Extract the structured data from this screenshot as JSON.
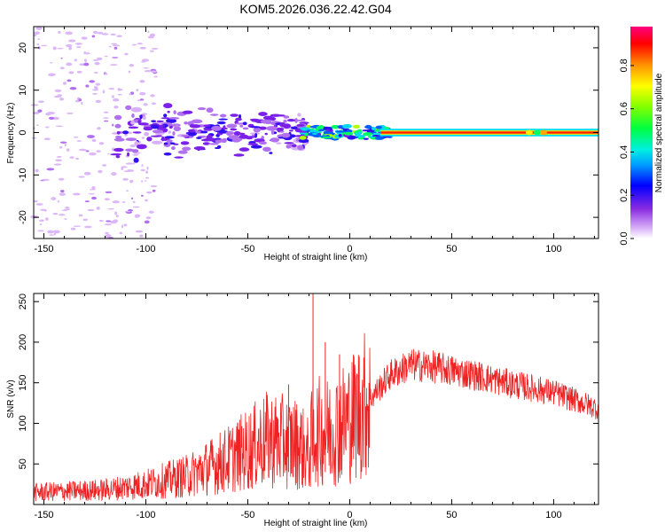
{
  "title": "KOM5.2026.036.22.42.G04",
  "chart_data": [
    {
      "type": "heatmap",
      "xlabel": "Height of straight line (km)",
      "ylabel": "Frequency (Hz)",
      "xlim": [
        -155,
        122
      ],
      "ylim": [
        -25,
        25
      ],
      "xticks": [
        -150,
        -100,
        -50,
        0,
        50,
        100
      ],
      "yticks": [
        -20,
        -10,
        0,
        10,
        20
      ],
      "description_series": [
        {
          "name": "carrier",
          "x_range": [
            -20,
            122
          ],
          "frequency": 0,
          "amplitude": 0.95
        },
        {
          "name": "scatter_strong",
          "x_range": [
            -110,
            -15
          ],
          "frequency_range": [
            -10,
            10
          ],
          "amplitude": 0.15
        },
        {
          "name": "scatter_weak",
          "x_range": [
            -155,
            -95
          ],
          "frequency_range": [
            -25,
            25
          ],
          "amplitude": 0.05
        }
      ],
      "colorbar": {
        "label": "Normalized spectral amplitude",
        "ticks": [
          "0.0",
          "0.2",
          "0.4",
          "0.6",
          "0.8"
        ],
        "tick_values": [
          0.0,
          0.2,
          0.4,
          0.6,
          0.8
        ],
        "range": [
          0,
          0.98
        ]
      }
    },
    {
      "type": "line",
      "xlabel": "Height of straight line (km)",
      "ylabel": "SNR (v/v)",
      "xlim": [
        -155,
        122
      ],
      "ylim": [
        0,
        260
      ],
      "xticks": [
        -150,
        -100,
        -50,
        0,
        50,
        100
      ],
      "yticks": [
        50,
        100,
        150,
        200,
        250
      ],
      "color": "#ee2222",
      "envelope": {
        "x": [
          -155,
          -120,
          -100,
          -80,
          -60,
          -40,
          -25,
          -20,
          -18,
          -10,
          0,
          10,
          20,
          30,
          40,
          60,
          80,
          100,
          122
        ],
        "y": [
          15,
          18,
          25,
          35,
          55,
          80,
          75,
          60,
          90,
          90,
          105,
          130,
          160,
          172,
          170,
          160,
          148,
          138,
          118
        ]
      },
      "spikes": [
        {
          "x": -18,
          "y": 260
        },
        {
          "x": -12,
          "y": 200
        },
        {
          "x": -30,
          "y": 148
        },
        {
          "x": -5,
          "y": 185
        }
      ]
    }
  ]
}
